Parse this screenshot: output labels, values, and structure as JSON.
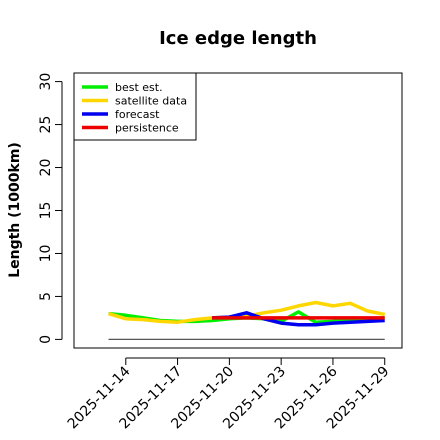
{
  "chart_data": {
    "type": "line",
    "title": "Ice edge length",
    "ylabel": "Length (1000km)",
    "xlabel": "",
    "ylim": [
      -1,
      31
    ],
    "yticks": [
      0,
      5,
      10,
      15,
      20,
      25,
      30
    ],
    "xlim": [
      "2025-11-11",
      "2025-11-30"
    ],
    "xticks": [
      {
        "date": "2025-11-14",
        "label": "2025-11-14",
        "color": "#000000"
      },
      {
        "date": "2025-11-17",
        "label": "2025-11-17",
        "color": "#000000"
      },
      {
        "date": "2025-11-20",
        "label": "2025-11-20",
        "color": "#228B22"
      },
      {
        "date": "2025-11-23",
        "label": "2025-11-23",
        "color": "#000000"
      },
      {
        "date": "2025-11-26",
        "label": "2025-11-26",
        "color": "#000000"
      },
      {
        "date": "2025-11-29",
        "label": "2025-11-29",
        "color": "#000000"
      }
    ],
    "grid": false,
    "legend_position": "top-left",
    "baseline": {
      "value": 0,
      "x": [
        "2025-11-13",
        "2025-11-29"
      ],
      "color": "#555555"
    },
    "series": [
      {
        "name": "best est.",
        "color": "#00EE00",
        "x": [
          "2025-11-13",
          "2025-11-14",
          "2025-11-15",
          "2025-11-16",
          "2025-11-17",
          "2025-11-18",
          "2025-11-19",
          "2025-11-20",
          "2025-11-21",
          "2025-11-22",
          "2025-11-23",
          "2025-11-24",
          "2025-11-25",
          "2025-11-26",
          "2025-11-27",
          "2025-11-28",
          "2025-11-29"
        ],
        "values": [
          3.0,
          2.8,
          2.5,
          2.2,
          2.1,
          2.1,
          2.2,
          2.4,
          2.5,
          2.4,
          2.1,
          3.2,
          2.0,
          2.1,
          2.3,
          2.4,
          2.5
        ]
      },
      {
        "name": "satellite data",
        "color": "#FFD700",
        "x": [
          "2025-11-13",
          "2025-11-14",
          "2025-11-15",
          "2025-11-16",
          "2025-11-17",
          "2025-11-18",
          "2025-11-19",
          "2025-11-20",
          "2025-11-21",
          "2025-11-22",
          "2025-11-23",
          "2025-11-24",
          "2025-11-25",
          "2025-11-26",
          "2025-11-27",
          "2025-11-28",
          "2025-11-29"
        ],
        "values": [
          3.0,
          2.4,
          2.3,
          2.1,
          2.0,
          2.3,
          2.5,
          2.6,
          2.7,
          3.1,
          3.4,
          3.9,
          4.3,
          3.9,
          4.2,
          3.3,
          2.9
        ]
      },
      {
        "name": "forecast",
        "color": "#0000EE",
        "x": [
          "2025-11-19",
          "2025-11-20",
          "2025-11-21",
          "2025-11-22",
          "2025-11-23",
          "2025-11-24",
          "2025-11-25",
          "2025-11-26",
          "2025-11-27",
          "2025-11-28",
          "2025-11-29"
        ],
        "values": [
          2.5,
          2.6,
          3.1,
          2.4,
          1.9,
          1.7,
          1.7,
          1.9,
          2.0,
          2.1,
          2.2
        ]
      },
      {
        "name": "persistence",
        "color": "#EE0000",
        "x": [
          "2025-11-19",
          "2025-11-29"
        ],
        "values": [
          2.5,
          2.5
        ]
      }
    ]
  }
}
